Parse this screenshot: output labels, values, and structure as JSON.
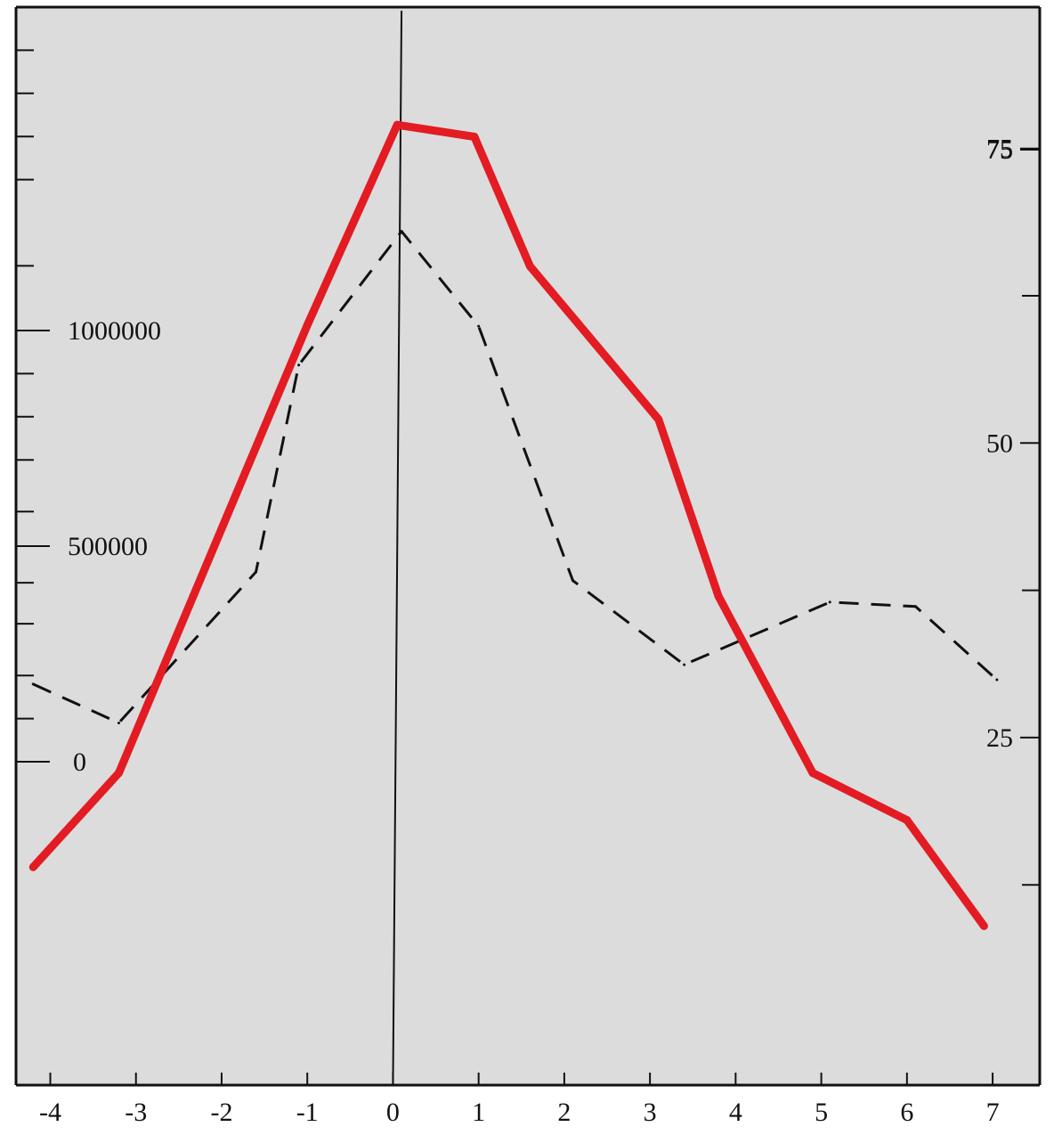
{
  "chart_data": {
    "type": "line",
    "title": "",
    "xlabel": "",
    "ylabel": "",
    "x_ticks": [
      "-4",
      "-3",
      "-2",
      "-1",
      "0",
      "1",
      "2",
      "3",
      "4",
      "5",
      "6",
      "7"
    ],
    "x_range": [
      -4.4,
      7.55
    ],
    "left_axis": {
      "range": [
        -750000,
        1750000
      ],
      "tick_labels": [
        {
          "value": 1000000,
          "label": "1000000"
        },
        {
          "value": 500000,
          "label": "500000"
        },
        {
          "value": 0,
          "label": "0"
        }
      ],
      "minor_ticks": [
        1650000,
        1550000,
        1450000,
        1350000,
        1150000,
        900000,
        800000,
        700000,
        580000,
        415000,
        320000,
        200000,
        100000
      ]
    },
    "right_axis": {
      "range": [
        -4.5,
        87
      ],
      "tick_labels": [
        {
          "value": 75,
          "label": "75"
        },
        {
          "value": 74.9,
          "label": "75"
        },
        {
          "value": 50,
          "label": "50"
        },
        {
          "value": 25,
          "label": "25"
        }
      ],
      "minor_ticks": [
        62.5,
        37.5,
        12.5
      ]
    },
    "grid": false,
    "legend": "none",
    "series": [
      {
        "axis": "left",
        "style": "dashed",
        "color": "#111111",
        "points": [
          {
            "x": -4.2,
            "y": 180000
          },
          {
            "x": -3.2,
            "y": 90000
          },
          {
            "x": -1.6,
            "y": 440000
          },
          {
            "x": -1.1,
            "y": 920000
          },
          {
            "x": 0.1,
            "y": 1230000
          },
          {
            "x": 1.0,
            "y": 1010000
          },
          {
            "x": 2.1,
            "y": 420000
          },
          {
            "x": 3.4,
            "y": 225000
          },
          {
            "x": 5.1,
            "y": 370000
          },
          {
            "x": 6.1,
            "y": 360000
          },
          {
            "x": 7.05,
            "y": 190000
          }
        ]
      },
      {
        "axis": "right",
        "style": "solid",
        "color": "#e31b23",
        "points": [
          {
            "x": -4.2,
            "y": 14
          },
          {
            "x": -3.2,
            "y": 22
          },
          {
            "x": -1.0,
            "y": 60
          },
          {
            "x": 0.05,
            "y": 77
          },
          {
            "x": 0.95,
            "y": 76
          },
          {
            "x": 1.6,
            "y": 65
          },
          {
            "x": 3.1,
            "y": 52
          },
          {
            "x": 3.8,
            "y": 37
          },
          {
            "x": 4.9,
            "y": 22
          },
          {
            "x": 6.0,
            "y": 18
          },
          {
            "x": 6.9,
            "y": 9
          }
        ]
      }
    ]
  }
}
